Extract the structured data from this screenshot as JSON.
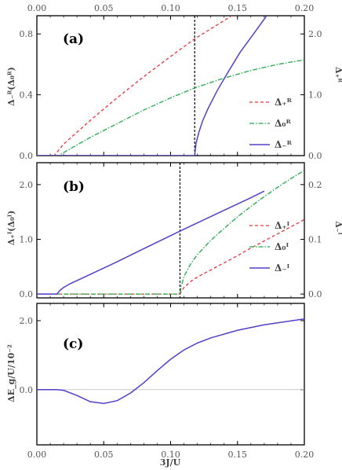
{
  "chart_data": [
    {
      "type": "line",
      "panel_label": "(a)",
      "xlim": [
        0.0,
        0.2
      ],
      "top_ticks": [
        "0.00",
        "0.05",
        "0.10",
        "0.15",
        "0.20"
      ],
      "ylabel_left": "Δ₋ᴿ(Δ₀ᴿ)",
      "ylabel_right": "Δ₊ᴿ",
      "ylim_left": [
        0,
        0.92
      ],
      "yticks_left": [
        0.0,
        0.4,
        0.8
      ],
      "ytick_labels_left": [
        "0.0",
        "0.4",
        "0.8"
      ],
      "ylim_right": [
        0,
        2.3
      ],
      "yticks_right": [
        0.0,
        1.0,
        2.0
      ],
      "ytick_labels_right": [
        "0.0",
        "1.0",
        "2.0"
      ],
      "vline_x": 0.118,
      "legend_position": "right",
      "series": [
        {
          "name": "Δ₊ᴿ",
          "color": "#e8343a",
          "dash": "4,3",
          "axis": "right",
          "x": [
            0.0,
            0.013,
            0.02,
            0.04,
            0.06,
            0.08,
            0.1,
            0.118,
            0.14,
            0.16
          ],
          "y": [
            0.0,
            0.0,
            0.19,
            0.58,
            0.95,
            1.3,
            1.63,
            1.92,
            2.22,
            2.5
          ]
        },
        {
          "name": "Δ₀ᴿ",
          "color": "#1faa4a",
          "dash": "6,2,1.5,2",
          "axis": "left",
          "x": [
            0.0,
            0.016,
            0.02,
            0.04,
            0.06,
            0.08,
            0.1,
            0.118,
            0.14,
            0.16,
            0.18,
            0.2
          ],
          "y": [
            0.0,
            0.0,
            0.02,
            0.12,
            0.21,
            0.3,
            0.38,
            0.445,
            0.51,
            0.56,
            0.6,
            0.63
          ]
        },
        {
          "name": "Δ₋ᴿ",
          "color": "#5040c8",
          "dash": "",
          "axis": "left",
          "x": [
            0.0,
            0.118,
            0.119,
            0.121,
            0.124,
            0.128,
            0.135,
            0.143,
            0.152,
            0.162,
            0.171,
            0.18
          ],
          "y": [
            0.0,
            0.0,
            0.08,
            0.15,
            0.23,
            0.31,
            0.43,
            0.55,
            0.68,
            0.8,
            0.91,
            1.02
          ]
        }
      ]
    },
    {
      "type": "line",
      "panel_label": "(b)",
      "xlim": [
        0.0,
        0.2
      ],
      "ylabel_left": "Δ₊ᴵ(Δ₀ᴵ)",
      "ylabel_right": "Δ₋ᴵ",
      "ylim_left": [
        -0.07,
        2.4
      ],
      "yticks_left": [
        0.0,
        1.0,
        2.0
      ],
      "ytick_labels_left": [
        "0.0",
        "1.0",
        "2.0"
      ],
      "ylim_right": [
        -0.007,
        0.24
      ],
      "yticks_right": [
        0.0,
        0.1,
        0.2
      ],
      "ytick_labels_right": [
        "0.0",
        "0.1",
        "0.2"
      ],
      "vline_x": 0.107,
      "legend_position": "right",
      "series": [
        {
          "name": "Δ₊ᴵ",
          "color": "#e8343a",
          "dash": "4,3",
          "axis": "left",
          "x": [
            0.0,
            0.107,
            0.108,
            0.11,
            0.115,
            0.12,
            0.13,
            0.14,
            0.15,
            0.16,
            0.17,
            0.18,
            0.19,
            0.2
          ],
          "y": [
            0.0,
            0.0,
            0.05,
            0.12,
            0.23,
            0.31,
            0.44,
            0.57,
            0.7,
            0.84,
            0.97,
            1.1,
            1.23,
            1.36
          ]
        },
        {
          "name": "Δ₀ᴵ",
          "color": "#1faa4a",
          "dash": "6,2,1.5,2",
          "axis": "left",
          "x": [
            0.0,
            0.107,
            0.108,
            0.11,
            0.115,
            0.12,
            0.13,
            0.14,
            0.15,
            0.16,
            0.17,
            0.18,
            0.19,
            0.2
          ],
          "y": [
            0.0,
            0.0,
            0.15,
            0.32,
            0.55,
            0.72,
            0.98,
            1.2,
            1.41,
            1.6,
            1.78,
            1.95,
            2.11,
            2.26
          ]
        },
        {
          "name": "Δ₋ᴵ",
          "color": "#5040c8",
          "dash": "",
          "axis": "right",
          "x": [
            0.0,
            0.015,
            0.017,
            0.02,
            0.025,
            0.04,
            0.06,
            0.08,
            0.107,
            0.12,
            0.14,
            0.16,
            0.17
          ],
          "y": [
            0.0,
            0.0,
            0.006,
            0.012,
            0.019,
            0.036,
            0.059,
            0.083,
            0.115,
            0.13,
            0.153,
            0.176,
            0.188
          ]
        }
      ]
    },
    {
      "type": "line",
      "panel_label": "(c)",
      "xlim": [
        0.0,
        0.2
      ],
      "xlabel": "3J/U",
      "xticks": [
        0.0,
        0.05,
        0.1,
        0.15,
        0.2
      ],
      "xtick_labels": [
        "0.00",
        "0.05",
        "0.10",
        "0.15",
        "0.20"
      ],
      "ylabel": "ΔE_g/U/10⁻²",
      "ylim": [
        -1.6,
        2.5
      ],
      "yticks": [
        0.0,
        2.0
      ],
      "ytick_labels": [
        "0.0",
        "2.0"
      ],
      "hline_y": 0.0,
      "series": [
        {
          "name": "",
          "color": "#5040c8",
          "dash": "",
          "axis": "left",
          "x": [
            0.0,
            0.015,
            0.02,
            0.03,
            0.04,
            0.05,
            0.06,
            0.07,
            0.08,
            0.09,
            0.1,
            0.11,
            0.12,
            0.13,
            0.15,
            0.17,
            0.2
          ],
          "y": [
            0.0,
            0.0,
            -0.02,
            -0.17,
            -0.35,
            -0.4,
            -0.32,
            -0.1,
            0.2,
            0.55,
            0.88,
            1.15,
            1.35,
            1.5,
            1.72,
            1.88,
            2.05
          ]
        }
      ]
    }
  ]
}
